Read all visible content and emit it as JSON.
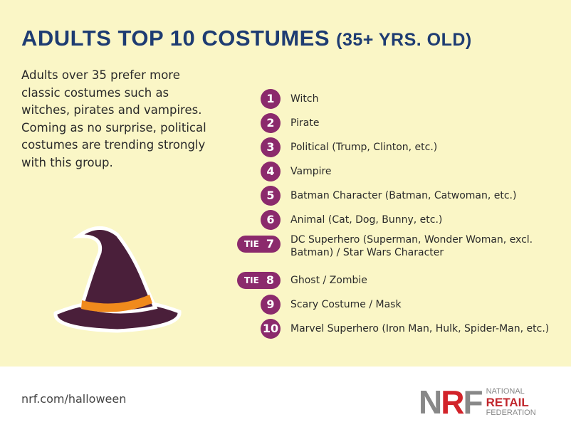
{
  "title": {
    "main": "ADULTS TOP 10 COSTUMES",
    "sub": "(35+ YRS. OLD)"
  },
  "intro": "Adults over 35 prefer more classic costumes such as witches, pirates and vampires. Coming as no surprise, political costumes are trending strongly with this group.",
  "colors": {
    "background": "#faf6c6",
    "title": "#1e3c72",
    "badge": "#8b2a6c",
    "hat": "#4a1f3a",
    "hat_band": "#f08a1c"
  },
  "list": [
    {
      "rank": "1",
      "tie": "",
      "label": "Witch"
    },
    {
      "rank": "2",
      "tie": "",
      "label": "Pirate"
    },
    {
      "rank": "3",
      "tie": "",
      "label": "Political (Trump, Clinton, etc.)"
    },
    {
      "rank": "4",
      "tie": "",
      "label": "Vampire"
    },
    {
      "rank": "5",
      "tie": "",
      "label": "Batman Character (Batman, Catwoman, etc.)"
    },
    {
      "rank": "6",
      "tie": "",
      "label": "Animal (Cat, Dog, Bunny, etc.)"
    },
    {
      "rank": "7",
      "tie": "TIE",
      "label": "DC Superhero (Superman, Wonder Woman, excl. Batman) / Star Wars Character"
    },
    {
      "rank": "8",
      "tie": "TIE",
      "label": "Ghost / Zombie"
    },
    {
      "rank": "9",
      "tie": "",
      "label": "Scary Costume / Mask"
    },
    {
      "rank": "10",
      "tie": "",
      "label": "Marvel Superhero (Iron Man, Hulk, Spider-Man, etc.)"
    }
  ],
  "footer": {
    "url": "nrf.com/halloween",
    "logo": {
      "mark": "NRF",
      "line1": "NATIONAL",
      "line2": "RETAIL",
      "line3": "FEDERATION"
    }
  }
}
